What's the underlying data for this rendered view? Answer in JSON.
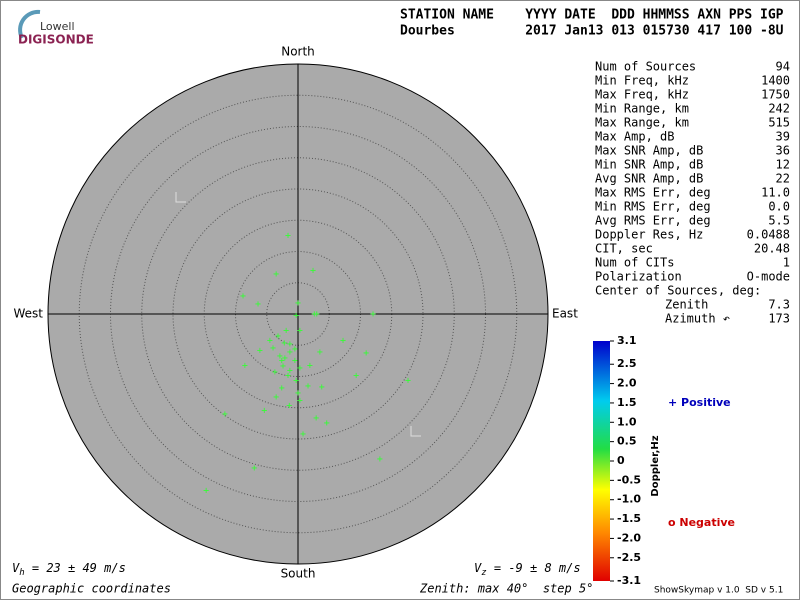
{
  "logo": {
    "top": "Lowell",
    "bottom": "DIGISONDE"
  },
  "header": {
    "line1": "STATION NAME    YYYY DATE  DDD HHMMSS AXN PPS IGP",
    "line2": "Dourbes         2017 Jan13 013 015730 417 100 -8U"
  },
  "compass": {
    "north": "North",
    "south": "South",
    "east": "East",
    "west": "West"
  },
  "stats": {
    "rows": [
      [
        "Num of Sources",
        "94"
      ],
      [
        "Min Freq, kHz",
        "1400"
      ],
      [
        "Max Freq, kHz",
        "1750"
      ],
      [
        "Min Range, km",
        "242"
      ],
      [
        "Max Range, km",
        "515"
      ],
      [
        "Max Amp, dB",
        "39"
      ],
      [
        "Max SNR Amp, dB",
        "36"
      ],
      [
        "Min SNR Amp, dB",
        "12"
      ],
      [
        "Avg SNR Amp, dB",
        "22"
      ],
      [
        "Max RMS Err, deg",
        "11.0"
      ],
      [
        "Min RMS Err, deg",
        "0.0"
      ],
      [
        "Avg RMS Err, deg",
        "5.5"
      ],
      [
        "Doppler Res, Hz",
        "0.0488"
      ],
      [
        "CIT, sec",
        "20.48"
      ],
      [
        "Num of CITs",
        "1"
      ],
      [
        "Polarization",
        "O-mode"
      ]
    ],
    "center_heading": "Center of Sources, deg:",
    "center_rows": [
      [
        "Zenith",
        "7.3"
      ],
      [
        "Azimuth ↶",
        "173"
      ]
    ]
  },
  "colorbar": {
    "title": "Doppler,Hz",
    "ticks": [
      "3.1",
      "2.5",
      "2.0",
      "1.5",
      "1.0",
      "0.5",
      "0",
      "-0.5",
      "-1.0",
      "-1.5",
      "-2.0",
      "-2.5",
      "-3.1"
    ],
    "positive": "+ Positive",
    "negative": "o Negative"
  },
  "footer": {
    "vh": [
      "V",
      "h",
      " = 23 ± 49 m/s"
    ],
    "vz": [
      "V",
      "z",
      " = -9 ± 8 m/s"
    ],
    "coords": "Geographic coordinates",
    "zenith": "Zenith: max 40°  step 5°",
    "version": "ShowSkymap v 1.0  SD v 5.1"
  },
  "sources": [
    [
      -1.6,
      12.6
    ],
    [
      -3.5,
      6.4
    ],
    [
      2.4,
      7.0
    ],
    [
      -8.8,
      2.9
    ],
    [
      -6.4,
      1.6
    ],
    [
      0,
      1.8
    ],
    [
      -0.3,
      -0.2
    ],
    [
      2.6,
      0
    ],
    [
      3.0,
      0
    ],
    [
      12.0,
      0
    ],
    [
      0.3,
      -2.6
    ],
    [
      -1.9,
      -2.6
    ],
    [
      -3.2,
      -3.5
    ],
    [
      -4.5,
      -4.2
    ],
    [
      7.2,
      -4.2
    ],
    [
      -1.3,
      -4.8
    ],
    [
      3.5,
      -6.1
    ],
    [
      10.9,
      -6.2
    ],
    [
      -2.9,
      -6.7
    ],
    [
      -2.1,
      -7.0
    ],
    [
      -0.5,
      -7.4
    ],
    [
      -6.1,
      -5.8
    ],
    [
      -4.0,
      -5.4
    ],
    [
      -8.5,
      -8.2
    ],
    [
      -2.4,
      -8.3
    ],
    [
      -1.3,
      -9.0
    ],
    [
      0.3,
      -8.6
    ],
    [
      1.9,
      -8.2
    ],
    [
      -3.7,
      -9.3
    ],
    [
      -1.6,
      -9.8
    ],
    [
      -0.3,
      -10.6
    ],
    [
      1.6,
      -11.5
    ],
    [
      3.8,
      -11.7
    ],
    [
      9.3,
      -9.8
    ],
    [
      17.6,
      -10.6
    ],
    [
      -2.6,
      -11.8
    ],
    [
      0,
      -12.6
    ],
    [
      -3.5,
      -13.3
    ],
    [
      -5.4,
      -15.4
    ],
    [
      -1.4,
      -14.6
    ],
    [
      0.3,
      -13.8
    ],
    [
      -11.7,
      -16.0
    ],
    [
      2.9,
      -16.6
    ],
    [
      4.6,
      -17.4
    ],
    [
      0.8,
      -19.2
    ],
    [
      13.1,
      -23.2
    ],
    [
      -7.0,
      -24.6
    ],
    [
      -14.7,
      -28.2
    ],
    [
      -2.2,
      -4.6
    ],
    [
      -1.3,
      -6.1
    ],
    [
      -2.6,
      -7.4
    ],
    [
      -0.5,
      -5.6
    ]
  ]
}
